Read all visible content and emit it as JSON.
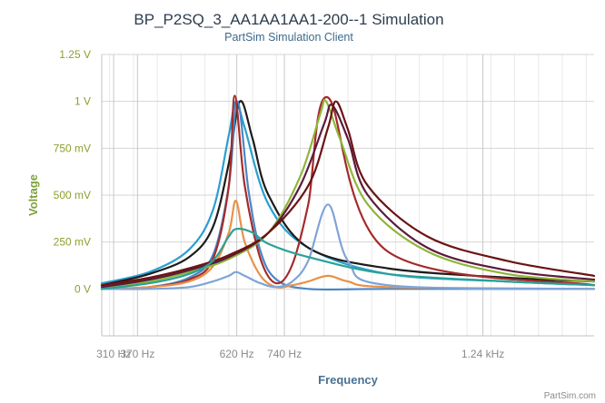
{
  "chart_data": {
    "type": "line",
    "title": "BP_P2SQ_3_AA1AA1AA1-200--1 Simulation",
    "subtitle": "PartSim Simulation Client",
    "xlabel": "Frequency",
    "ylabel": "Voltage",
    "credit": "PartSim.com",
    "x_ticks": [
      {
        "value": 310,
        "label": "310 Hz"
      },
      {
        "value": 370,
        "label": "370 Hz"
      },
      {
        "value": 620,
        "label": "620 Hz"
      },
      {
        "value": 740,
        "label": "740 Hz"
      },
      {
        "value": 1240,
        "label": "1.24 kHz"
      }
    ],
    "y_ticks": [
      {
        "value": 0,
        "label": "0 V"
      },
      {
        "value": 0.25,
        "label": "250 mV"
      },
      {
        "value": 0.5,
        "label": "500 mV"
      },
      {
        "value": 0.75,
        "label": "750 mV"
      },
      {
        "value": 1.0,
        "label": "1 V"
      },
      {
        "value": 1.25,
        "label": "1.25 V"
      }
    ],
    "xlim": [
      280,
      1520
    ],
    "ylim": [
      -0.25,
      1.25
    ],
    "grid": true,
    "series": [
      {
        "color": "#2a9fd0",
        "x": [
          280,
          400,
          500,
          560,
          600,
          618,
          640,
          700,
          800,
          1000,
          1300,
          1520
        ],
        "y": [
          0.03,
          0.09,
          0.21,
          0.42,
          0.82,
          1.0,
          0.86,
          0.45,
          0.22,
          0.08,
          0.04,
          0.02
        ]
      },
      {
        "color": "#1c1c1c",
        "x": [
          280,
          400,
          500,
          560,
          600,
          628,
          660,
          700,
          800,
          1000,
          1300,
          1520
        ],
        "y": [
          0.02,
          0.08,
          0.17,
          0.33,
          0.67,
          1.0,
          0.8,
          0.5,
          0.22,
          0.11,
          0.06,
          0.04
        ]
      },
      {
        "color": "#4b86c5",
        "x": [
          280,
          400,
          500,
          560,
          600,
          622,
          650,
          680,
          720,
          800,
          1000,
          1520
        ],
        "y": [
          0.0,
          0.01,
          0.06,
          0.18,
          0.55,
          1.0,
          0.52,
          0.2,
          0.05,
          0.0,
          0.0,
          0.0
        ]
      },
      {
        "color": "#a52a2a",
        "x": [
          280,
          400,
          500,
          560,
          600,
          615,
          640,
          680,
          720,
          760,
          800,
          850,
          1000,
          1520
        ],
        "y": [
          0.0,
          0.01,
          0.05,
          0.16,
          0.55,
          1.03,
          0.55,
          0.16,
          0.03,
          0.13,
          0.45,
          1.02,
          0.2,
          0.02
        ]
      },
      {
        "color": "#e8924a",
        "x": [
          280,
          400,
          500,
          560,
          600,
          618,
          640,
          680,
          720,
          760,
          800,
          850,
          900,
          1000,
          1520
        ],
        "y": [
          0.0,
          0.01,
          0.04,
          0.12,
          0.3,
          0.47,
          0.25,
          0.07,
          0.01,
          0.02,
          0.04,
          0.07,
          0.04,
          0.01,
          0.0
        ]
      },
      {
        "color": "#7fa4d6",
        "x": [
          280,
          400,
          500,
          560,
          600,
          618,
          640,
          680,
          720,
          760,
          800,
          850,
          900,
          1000,
          1520
        ],
        "y": [
          0.0,
          0.0,
          0.01,
          0.04,
          0.07,
          0.09,
          0.07,
          0.03,
          0.01,
          0.04,
          0.15,
          0.45,
          0.15,
          0.02,
          0.0
        ]
      },
      {
        "color": "#8fb63a",
        "x": [
          280,
          400,
          500,
          600,
          700,
          780,
          830,
          845,
          880,
          950,
          1100,
          1300,
          1520
        ],
        "y": [
          0.0,
          0.04,
          0.09,
          0.16,
          0.3,
          0.6,
          0.93,
          1.0,
          0.8,
          0.45,
          0.2,
          0.08,
          0.04
        ]
      },
      {
        "color": "#5c1a3a",
        "x": [
          280,
          400,
          500,
          600,
          700,
          780,
          840,
          860,
          900,
          950,
          1100,
          1300,
          1520
        ],
        "y": [
          0.01,
          0.05,
          0.1,
          0.17,
          0.3,
          0.55,
          0.88,
          0.98,
          0.8,
          0.5,
          0.22,
          0.1,
          0.05
        ]
      },
      {
        "color": "#6b1414",
        "x": [
          280,
          400,
          500,
          600,
          700,
          800,
          850,
          870,
          900,
          950,
          1100,
          1300,
          1520
        ],
        "y": [
          0.02,
          0.06,
          0.11,
          0.18,
          0.3,
          0.55,
          0.86,
          1.0,
          0.85,
          0.55,
          0.28,
          0.15,
          0.07
        ]
      },
      {
        "color": "#2aa198",
        "x": [
          280,
          400,
          500,
          560,
          600,
          620,
          660,
          700,
          800,
          1000,
          1300,
          1520
        ],
        "y": [
          0.0,
          0.03,
          0.08,
          0.15,
          0.28,
          0.32,
          0.3,
          0.24,
          0.17,
          0.08,
          0.04,
          0.02
        ]
      }
    ]
  }
}
